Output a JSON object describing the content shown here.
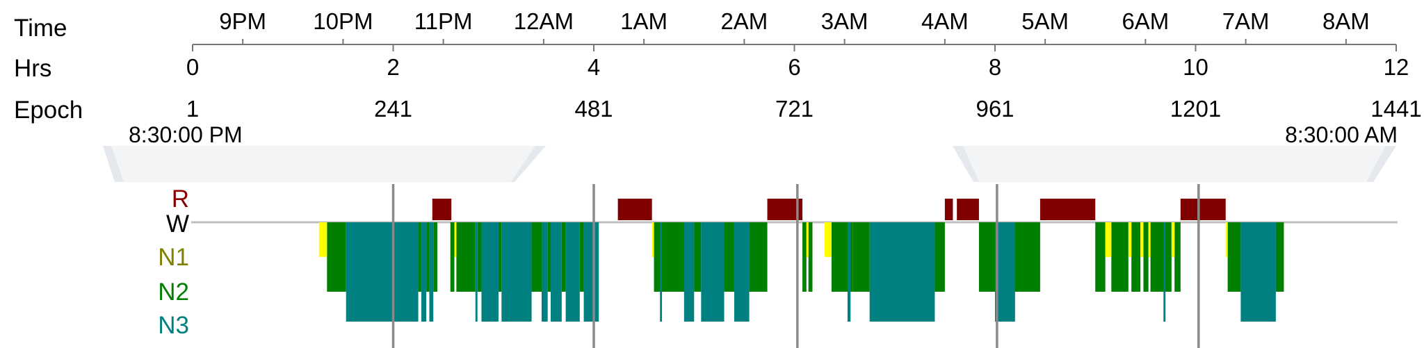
{
  "chart_data": {
    "type": "hypnogram",
    "row_labels": [
      "Time",
      "Hrs",
      "Epoch"
    ],
    "time_ticks": [
      "9PM",
      "10PM",
      "11PM",
      "12AM",
      "1AM",
      "2AM",
      "3AM",
      "4AM",
      "5AM",
      "6AM",
      "7AM",
      "8AM"
    ],
    "time_tick_hours": [
      0.5,
      1.5,
      2.5,
      3.5,
      4.5,
      5.5,
      6.5,
      7.5,
      8.5,
      9.5,
      10.5,
      11.5
    ],
    "hrs_ticks": [
      "0",
      "2",
      "4",
      "6",
      "8",
      "10",
      "12"
    ],
    "hrs_values": [
      0,
      2,
      4,
      6,
      8,
      10,
      12
    ],
    "epoch_ticks": [
      "1",
      "241",
      "481",
      "721",
      "961",
      "1201",
      "1441"
    ],
    "start_time": "8:30:00 PM",
    "end_time": "8:30:00 AM",
    "hours_range": [
      0,
      12
    ],
    "stage_labels": [
      "R",
      "W",
      "N1",
      "N2",
      "N3"
    ],
    "stage_colors": {
      "R": "#800000",
      "W": "#000000",
      "N1": "#ffff00",
      "N2": "#008000",
      "N3": "#008080"
    },
    "label_colors": {
      "R": "#8b0000",
      "W": "#000000",
      "N1": "#808000",
      "N2": "#008000",
      "N3": "#008080"
    },
    "cycle_boundaries_hours": [
      2.0,
      4.0,
      6.03,
      8.02,
      10.03
    ],
    "segments": [
      {
        "stage": "N1",
        "start": 1.26,
        "end": 1.34
      },
      {
        "stage": "N2",
        "start": 1.34,
        "end": 1.53
      },
      {
        "stage": "N3",
        "start": 1.53,
        "end": 2.25
      },
      {
        "stage": "N2",
        "start": 1.85,
        "end": 1.88
      },
      {
        "stage": "N2",
        "start": 2.22,
        "end": 2.25
      },
      {
        "stage": "N2",
        "start": 2.25,
        "end": 2.28
      },
      {
        "stage": "N3",
        "start": 2.28,
        "end": 2.33
      },
      {
        "stage": "N2",
        "start": 2.33,
        "end": 2.36
      },
      {
        "stage": "N3",
        "start": 2.36,
        "end": 2.4
      },
      {
        "stage": "N2",
        "start": 2.4,
        "end": 2.44
      },
      {
        "stage": "R",
        "start": 2.39,
        "end": 2.58
      },
      {
        "stage": "N2",
        "start": 2.57,
        "end": 2.61
      },
      {
        "stage": "N1",
        "start": 2.61,
        "end": 2.63
      },
      {
        "stage": "N2",
        "start": 2.63,
        "end": 2.82
      },
      {
        "stage": "N3",
        "start": 2.82,
        "end": 2.84
      },
      {
        "stage": "N2",
        "start": 2.84,
        "end": 2.88
      },
      {
        "stage": "N3",
        "start": 2.88,
        "end": 3.05
      },
      {
        "stage": "N2",
        "start": 3.05,
        "end": 3.08
      },
      {
        "stage": "N3",
        "start": 3.08,
        "end": 3.38
      },
      {
        "stage": "N2",
        "start": 3.17,
        "end": 3.19
      },
      {
        "stage": "N2",
        "start": 3.38,
        "end": 3.48
      },
      {
        "stage": "N3",
        "start": 3.48,
        "end": 3.54
      },
      {
        "stage": "N2",
        "start": 3.54,
        "end": 3.57
      },
      {
        "stage": "N3",
        "start": 3.57,
        "end": 3.68
      },
      {
        "stage": "N2",
        "start": 3.68,
        "end": 3.72
      },
      {
        "stage": "N3",
        "start": 3.72,
        "end": 3.86
      },
      {
        "stage": "N2",
        "start": 3.86,
        "end": 3.9
      },
      {
        "stage": "N3",
        "start": 3.9,
        "end": 4.05
      },
      {
        "stage": "R",
        "start": 4.24,
        "end": 4.58
      },
      {
        "stage": "N1",
        "start": 4.58,
        "end": 4.6
      },
      {
        "stage": "N2",
        "start": 4.6,
        "end": 5.0
      },
      {
        "stage": "N3",
        "start": 4.66,
        "end": 4.68
      },
      {
        "stage": "N3",
        "start": 4.9,
        "end": 5.0
      },
      {
        "stage": "N2",
        "start": 5.0,
        "end": 5.07
      },
      {
        "stage": "N3",
        "start": 5.07,
        "end": 5.3
      },
      {
        "stage": "N2",
        "start": 5.3,
        "end": 5.4
      },
      {
        "stage": "N3",
        "start": 5.4,
        "end": 5.55
      },
      {
        "stage": "N2",
        "start": 5.55,
        "end": 5.73
      },
      {
        "stage": "R",
        "start": 5.73,
        "end": 6.08
      },
      {
        "stage": "N2",
        "start": 6.08,
        "end": 6.12
      },
      {
        "stage": "N1",
        "start": 6.12,
        "end": 6.14
      },
      {
        "stage": "N2",
        "start": 6.14,
        "end": 6.18
      },
      {
        "stage": "N1",
        "start": 6.3,
        "end": 6.37
      },
      {
        "stage": "N2",
        "start": 6.37,
        "end": 6.58
      },
      {
        "stage": "N3",
        "start": 6.53,
        "end": 6.56
      },
      {
        "stage": "N2",
        "start": 6.58,
        "end": 6.75
      },
      {
        "stage": "N3",
        "start": 6.75,
        "end": 7.4
      },
      {
        "stage": "N2",
        "start": 7.4,
        "end": 7.5
      },
      {
        "stage": "R",
        "start": 7.5,
        "end": 7.58
      },
      {
        "stage": "R",
        "start": 7.62,
        "end": 7.84
      },
      {
        "stage": "N2",
        "start": 7.84,
        "end": 8.45
      },
      {
        "stage": "N3",
        "start": 8.0,
        "end": 8.2
      },
      {
        "stage": "R",
        "start": 8.45,
        "end": 9.0
      },
      {
        "stage": "N2",
        "start": 9.0,
        "end": 9.1
      },
      {
        "stage": "N1",
        "start": 9.1,
        "end": 9.16
      },
      {
        "stage": "N2",
        "start": 9.16,
        "end": 9.33
      },
      {
        "stage": "N1",
        "start": 9.33,
        "end": 9.36
      },
      {
        "stage": "N2",
        "start": 9.36,
        "end": 9.45
      },
      {
        "stage": "N1",
        "start": 9.45,
        "end": 9.48
      },
      {
        "stage": "N2",
        "start": 9.48,
        "end": 9.53
      },
      {
        "stage": "N1",
        "start": 9.53,
        "end": 9.55
      },
      {
        "stage": "N2",
        "start": 9.55,
        "end": 9.76
      },
      {
        "stage": "N1",
        "start": 9.76,
        "end": 9.79
      },
      {
        "stage": "N2",
        "start": 9.79,
        "end": 9.85
      },
      {
        "stage": "N3",
        "start": 9.68,
        "end": 9.7
      },
      {
        "stage": "R",
        "start": 9.85,
        "end": 10.3
      },
      {
        "stage": "N1",
        "start": 10.3,
        "end": 10.32
      },
      {
        "stage": "N2",
        "start": 10.32,
        "end": 10.45
      },
      {
        "stage": "N3",
        "start": 10.45,
        "end": 10.8
      },
      {
        "stage": "N2",
        "start": 10.8,
        "end": 10.88
      }
    ]
  }
}
